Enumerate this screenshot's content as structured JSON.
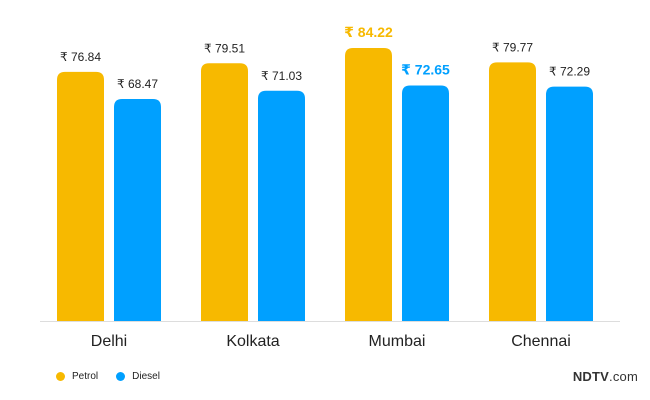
{
  "chart_data": {
    "type": "bar",
    "categories": [
      "Delhi",
      "Kolkata",
      "Mumbai",
      "Chennai"
    ],
    "series": [
      {
        "name": "Petrol",
        "color": "#F7B900",
        "values": [
          76.84,
          79.51,
          84.22,
          79.77
        ]
      },
      {
        "name": "Diesel",
        "color": "#00A0FF",
        "values": [
          68.47,
          71.03,
          72.65,
          72.29
        ]
      }
    ],
    "value_prefix": "₹",
    "highlight_category": "Mumbai",
    "ylim": [
      0,
      84.22
    ],
    "grid": false,
    "legend_position": "bottom-left",
    "title": "",
    "xlabel": "",
    "ylabel": ""
  },
  "legend": {
    "items": [
      {
        "label": "Petrol",
        "color": "#F7B900"
      },
      {
        "label": "Diesel",
        "color": "#00A0FF"
      }
    ]
  },
  "brand": {
    "name": "NDTV",
    "suffix": ".com"
  }
}
